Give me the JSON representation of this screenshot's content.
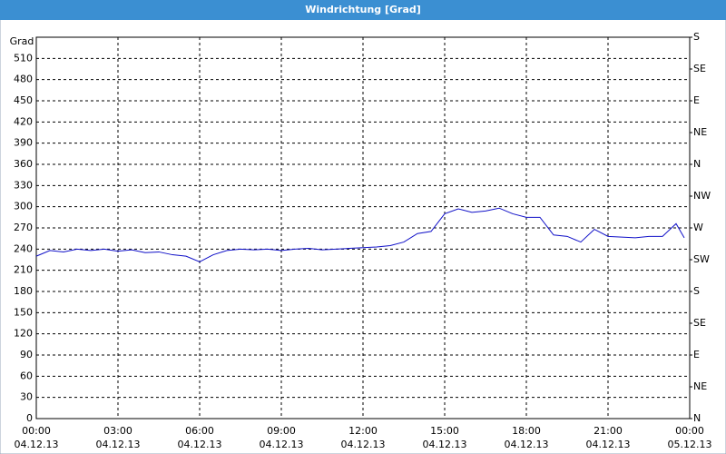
{
  "window_title": "Windrichtung [Grad]",
  "chart_data": {
    "type": "line",
    "ylabel": "Grad",
    "x": [
      0,
      0.5,
      1,
      1.5,
      2,
      2.5,
      3,
      3.5,
      4,
      4.5,
      5,
      5.5,
      6,
      6.5,
      7,
      7.5,
      8,
      8.5,
      9,
      9.5,
      10,
      10.5,
      11,
      11.5,
      12,
      12.5,
      13,
      13.5,
      14,
      14.5,
      15,
      15.5,
      16,
      16.5,
      17,
      17.5,
      18,
      18.5,
      19,
      19.5,
      20,
      20.5,
      21,
      21.5,
      22,
      22.5,
      23,
      23.5,
      23.8
    ],
    "series": [
      {
        "color": "#1010c8",
        "values": [
          230,
          238,
          236,
          240,
          238,
          240,
          237,
          239,
          235,
          236,
          232,
          230,
          222,
          232,
          238,
          240,
          239,
          240,
          238,
          240,
          241,
          239,
          240,
          241,
          242,
          243,
          245,
          250,
          262,
          265,
          290,
          297,
          292,
          294,
          298,
          290,
          285,
          285,
          260,
          258,
          250,
          268,
          258,
          257,
          256,
          258,
          258,
          276,
          256
        ]
      }
    ],
    "xlim": [
      0,
      24
    ],
    "xticks": [
      {
        "value": 0,
        "label": "00:00",
        "date": "04.12.13"
      },
      {
        "value": 3,
        "label": "03:00",
        "date": "04.12.13"
      },
      {
        "value": 6,
        "label": "06:00",
        "date": "04.12.13"
      },
      {
        "value": 9,
        "label": "09:00",
        "date": "04.12.13"
      },
      {
        "value": 12,
        "label": "12:00",
        "date": "04.12.13"
      },
      {
        "value": 15,
        "label": "15:00",
        "date": "04.12.13"
      },
      {
        "value": 18,
        "label": "18:00",
        "date": "04.12.13"
      },
      {
        "value": 21,
        "label": "21:00",
        "date": "04.12.13"
      },
      {
        "value": 24,
        "label": "00:00",
        "date": "05.12.13"
      }
    ],
    "ylim": [
      0,
      540
    ],
    "yticks": [
      0,
      30,
      60,
      90,
      120,
      150,
      180,
      210,
      240,
      270,
      300,
      330,
      360,
      390,
      420,
      450,
      480,
      510
    ],
    "y2lim": [
      0,
      540
    ],
    "y2ticks": [
      {
        "value": 0,
        "label": "N"
      },
      {
        "value": 45,
        "label": "NE"
      },
      {
        "value": 90,
        "label": "E"
      },
      {
        "value": 135,
        "label": "SE"
      },
      {
        "value": 180,
        "label": "S"
      },
      {
        "value": 225,
        "label": "SW"
      },
      {
        "value": 270,
        "label": "W"
      },
      {
        "value": 315,
        "label": "NW"
      },
      {
        "value": 360,
        "label": "N"
      },
      {
        "value": 405,
        "label": "NE"
      },
      {
        "value": 450,
        "label": "E"
      },
      {
        "value": 495,
        "label": "SE"
      },
      {
        "value": 540,
        "label": "S"
      }
    ],
    "grid": true
  }
}
